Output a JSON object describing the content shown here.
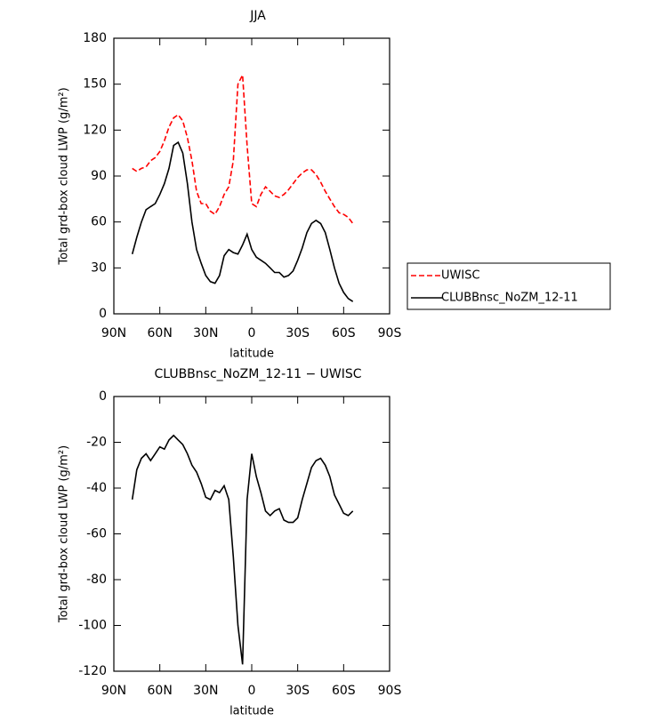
{
  "chart_data": [
    {
      "type": "line",
      "title": "JJA",
      "xlabel": "latitude",
      "ylabel": "Total grd-box cloud LWP (g/m²)",
      "x": [
        78,
        75,
        72,
        69,
        66,
        63,
        60,
        57,
        54,
        51,
        48,
        45,
        42,
        39,
        36,
        33,
        30,
        27,
        24,
        21,
        18,
        15,
        12,
        9,
        6,
        3,
        0,
        -3,
        -6,
        -9,
        -12,
        -15,
        -18,
        -21,
        -24,
        -27,
        -30,
        -33,
        -36,
        -39,
        -42,
        -45,
        -48,
        -51,
        -54,
        -57,
        -60,
        -63,
        -66
      ],
      "xlim": [
        90,
        -90
      ],
      "xticks": [
        {
          "value": 90,
          "label": "90N"
        },
        {
          "value": 60,
          "label": "60N"
        },
        {
          "value": 30,
          "label": "30N"
        },
        0,
        {
          "value": -30,
          "label": "30S"
        },
        {
          "value": -60,
          "label": "60S"
        },
        {
          "value": -90,
          "label": "90S"
        }
      ],
      "ylim": [
        0,
        180
      ],
      "yticks": [
        0,
        30,
        60,
        90,
        120,
        150,
        180
      ],
      "legend": "right",
      "series": [
        {
          "name": "UWISC",
          "color": "#ff0000",
          "dashed": true,
          "values": [
            95,
            93,
            95,
            96,
            100,
            102,
            106,
            113,
            122,
            128,
            130,
            126,
            115,
            100,
            80,
            72,
            72,
            67,
            65,
            70,
            78,
            83,
            100,
            150,
            156,
            110,
            72,
            70,
            78,
            83,
            80,
            77,
            76,
            78,
            81,
            85,
            89,
            92,
            94,
            94,
            91,
            86,
            80,
            75,
            70,
            66,
            65,
            63,
            59
          ]
        },
        {
          "name": "CLUBBnsc_NoZM_12-11",
          "color": "#000000",
          "dashed": false,
          "values": [
            39,
            50,
            60,
            68,
            70,
            72,
            78,
            85,
            95,
            110,
            112,
            105,
            85,
            60,
            42,
            33,
            25,
            21,
            20,
            25,
            38,
            42,
            40,
            39,
            45,
            52,
            42,
            37,
            35,
            33,
            30,
            27,
            27,
            24,
            25,
            28,
            35,
            43,
            53,
            59,
            61,
            59,
            53,
            42,
            30,
            20,
            14,
            10,
            8
          ]
        }
      ]
    },
    {
      "type": "line",
      "title": "CLUBBnsc_NoZM_12-11 − UWISC",
      "xlabel": "latitude",
      "ylabel": "Total grd-box cloud LWP (g/m²)",
      "x": [
        78,
        75,
        72,
        69,
        66,
        63,
        60,
        57,
        54,
        51,
        48,
        45,
        42,
        39,
        36,
        33,
        30,
        27,
        24,
        21,
        18,
        15,
        12,
        9,
        6,
        3,
        0,
        -3,
        -6,
        -9,
        -12,
        -15,
        -18,
        -21,
        -24,
        -27,
        -30,
        -33,
        -36,
        -39,
        -42,
        -45,
        -48,
        -51,
        -54,
        -57,
        -60,
        -63,
        -66
      ],
      "xlim": [
        90,
        -90
      ],
      "xticks": [
        {
          "value": 90,
          "label": "90N"
        },
        {
          "value": 60,
          "label": "60N"
        },
        {
          "value": 30,
          "label": "30N"
        },
        0,
        {
          "value": -30,
          "label": "30S"
        },
        {
          "value": -60,
          "label": "60S"
        },
        {
          "value": -90,
          "label": "90S"
        }
      ],
      "ylim": [
        -120,
        0
      ],
      "yticks": [
        -120,
        -100,
        -80,
        -60,
        -40,
        -20,
        0
      ],
      "series": [
        {
          "color": "#000000",
          "dashed": false,
          "values": [
            -45,
            -32,
            -27,
            -25,
            -28,
            -25,
            -22,
            -23,
            -19,
            -17,
            -19,
            -21,
            -25,
            -30,
            -33,
            -38,
            -44,
            -45,
            -41,
            -42,
            -39,
            -45,
            -70,
            -100,
            -117,
            -45,
            -25,
            -35,
            -42,
            -50,
            -52,
            -50,
            -49,
            -54,
            -55,
            -55,
            -53,
            -45,
            -38,
            -31,
            -28,
            -27,
            -30,
            -35,
            -43,
            -47,
            -51,
            -52,
            -50
          ]
        }
      ]
    }
  ]
}
